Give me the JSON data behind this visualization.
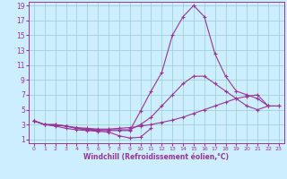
{
  "title": "",
  "xlabel": "Windchill (Refroidissement éolien,°C)",
  "bg_color": "#cceeff",
  "line_color": "#993399",
  "grid_color": "#99cccc",
  "xlim": [
    -0.5,
    23.5
  ],
  "ylim": [
    0.5,
    19.5
  ],
  "xticks": [
    0,
    1,
    2,
    3,
    4,
    5,
    6,
    7,
    8,
    9,
    10,
    11,
    12,
    13,
    14,
    15,
    16,
    17,
    18,
    19,
    20,
    21,
    22,
    23
  ],
  "yticks": [
    1,
    3,
    5,
    7,
    9,
    11,
    13,
    15,
    17,
    19
  ],
  "line1_x": [
    0,
    1,
    2,
    3,
    4,
    5,
    6,
    7,
    8,
    9,
    10,
    11,
    12,
    13,
    14,
    15,
    16,
    17,
    18,
    19,
    20,
    21,
    22
  ],
  "line1_y": [
    3.5,
    3.0,
    3.0,
    2.8,
    2.5,
    2.3,
    2.2,
    2.2,
    2.2,
    2.2,
    4.8,
    7.5,
    10.0,
    15.0,
    17.5,
    19.0,
    17.5,
    12.5,
    9.5,
    7.5,
    7.0,
    6.5,
    5.5
  ],
  "line2_x": [
    0,
    1,
    2,
    3,
    4,
    5,
    6,
    7,
    8,
    9,
    10,
    11,
    12,
    13,
    14,
    15,
    16,
    17,
    18,
    19,
    20,
    21,
    22,
    23
  ],
  "line2_y": [
    3.5,
    3.0,
    3.0,
    2.8,
    2.5,
    2.4,
    2.3,
    2.3,
    2.3,
    2.3,
    3.0,
    4.0,
    5.5,
    7.0,
    8.5,
    9.5,
    9.5,
    8.5,
    7.5,
    6.5,
    5.5,
    5.0,
    5.5,
    5.5
  ],
  "line3_x": [
    0,
    1,
    2,
    3,
    4,
    5,
    6,
    7,
    8,
    9,
    10,
    11,
    12,
    13,
    14,
    15,
    16,
    17,
    18,
    19,
    20,
    21,
    22,
    23
  ],
  "line3_y": [
    3.5,
    3.0,
    2.9,
    2.8,
    2.6,
    2.5,
    2.4,
    2.4,
    2.5,
    2.6,
    2.8,
    3.0,
    3.3,
    3.6,
    4.0,
    4.5,
    5.0,
    5.5,
    6.0,
    6.5,
    6.8,
    7.0,
    5.5,
    5.5
  ],
  "line4_x": [
    0,
    1,
    2,
    3,
    4,
    5,
    6,
    7,
    8,
    9,
    10,
    11
  ],
  "line4_y": [
    3.5,
    3.0,
    2.8,
    2.5,
    2.3,
    2.2,
    2.1,
    2.0,
    1.5,
    1.2,
    1.3,
    2.5
  ]
}
